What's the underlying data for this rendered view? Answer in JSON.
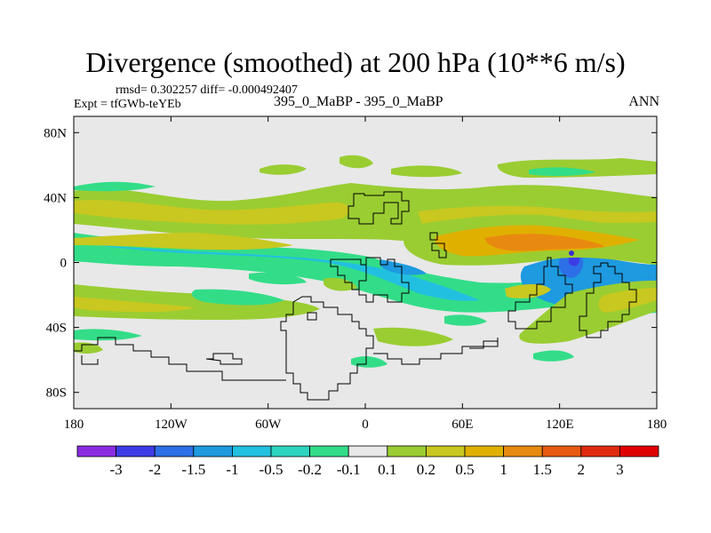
{
  "chart_data": {
    "type": "contour-map",
    "title": "Divergence (smoothed) at 200 hPa (10**6 m/s)",
    "stats_text": "rmsd= 0.302257 diff= -0.000492407",
    "expt_text": "Expt = tfGWb-teYEb",
    "case_text": "395_0_MaBP - 395_0_MaBP",
    "season_text": "ANN",
    "xlim": [
      -180,
      180
    ],
    "ylim": [
      -90,
      90
    ],
    "x_ticks": [
      {
        "value": -180,
        "label": "180"
      },
      {
        "value": -120,
        "label": "120W"
      },
      {
        "value": -60,
        "label": "60W"
      },
      {
        "value": 0,
        "label": "0"
      },
      {
        "value": 60,
        "label": "60E"
      },
      {
        "value": 120,
        "label": "120E"
      },
      {
        "value": 180,
        "label": "180"
      }
    ],
    "y_ticks": [
      {
        "value": 80,
        "label": "80N"
      },
      {
        "value": 40,
        "label": "40N"
      },
      {
        "value": 0,
        "label": "0"
      },
      {
        "value": -40,
        "label": "40S"
      },
      {
        "value": -80,
        "label": "80S"
      }
    ],
    "colorbar": {
      "levels": [
        "-3",
        "-2",
        "-1.5",
        "-1",
        "-0.5",
        "-0.2",
        "-0.1",
        "0.1",
        "0.2",
        "0.5",
        "1",
        "1.5",
        "2",
        "3"
      ],
      "colors": [
        "#8a2be2",
        "#3c3ce6",
        "#2d6fe6",
        "#1e9ae0",
        "#22c0e0",
        "#2dd4c0",
        "#33dd88",
        "#e8e8e8",
        "#9acd32",
        "#c8c820",
        "#e0b000",
        "#e88a10",
        "#e85a10",
        "#e02a10",
        "#e00000"
      ]
    },
    "features": [
      {
        "type": "positive",
        "level": "0.1",
        "lon": [
          -180,
          180
        ],
        "lat": [
          18,
          38
        ],
        "note": "northern subtropical band"
      },
      {
        "type": "positive",
        "level": "1",
        "lon": [
          60,
          140
        ],
        "lat": [
          3,
          18
        ],
        "note": "Asian / western Pacific maximum"
      },
      {
        "type": "negative",
        "level": "-1",
        "lon": [
          100,
          180
        ],
        "lat": [
          -35,
          5
        ],
        "note": "maritime continent minimum"
      },
      {
        "type": "negative",
        "level": "-3",
        "lon": [
          127,
          127
        ],
        "lat": [
          5,
          5
        ],
        "note": "central minimum"
      },
      {
        "type": "positive",
        "level": "0.2",
        "lon": [
          -180,
          -20
        ],
        "lat": [
          -45,
          -25
        ],
        "note": "southern subtropical band"
      }
    ]
  }
}
